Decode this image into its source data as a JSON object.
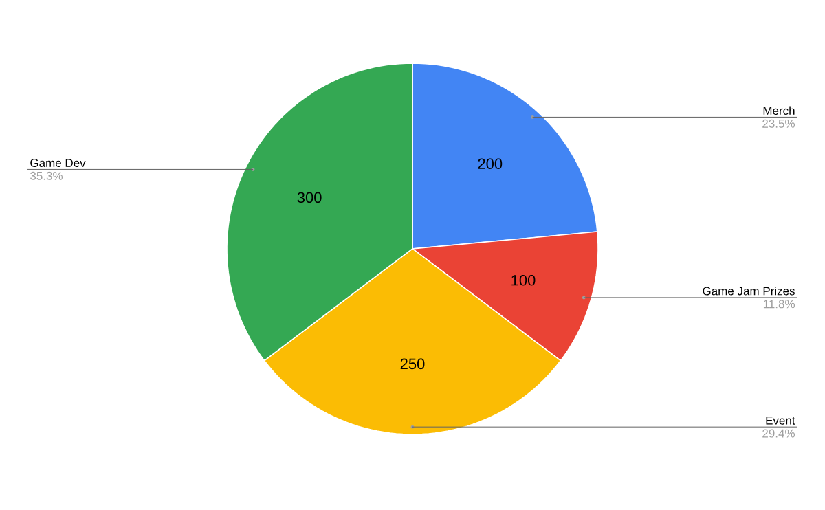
{
  "chart_data": {
    "type": "pie",
    "categories": [
      "Merch",
      "Game Jam Prizes",
      "Event",
      "Game Dev"
    ],
    "values": [
      200,
      100,
      250,
      300
    ],
    "colors": [
      "#4285f4",
      "#ea4335",
      "#fbbc04",
      "#34a853"
    ],
    "data_labels": true,
    "annotations": [
      "23.5%",
      "11.8%",
      "29.4%",
      "35.3%"
    ]
  }
}
